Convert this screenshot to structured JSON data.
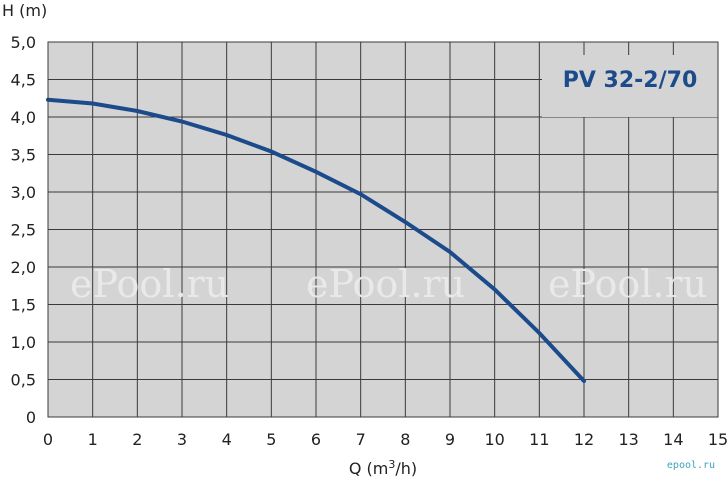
{
  "chart_data": {
    "type": "line",
    "title": "PV 32-2/70",
    "xlabel_prefix": "Q (m",
    "xlabel_sup": "3",
    "xlabel_suffix": "/h)",
    "ylabel": "H (m)",
    "xlim": [
      0,
      15
    ],
    "ylim": [
      0,
      5
    ],
    "x_ticks": [
      0,
      1,
      2,
      3,
      4,
      5,
      6,
      7,
      8,
      9,
      10,
      11,
      12,
      13,
      14,
      15
    ],
    "x_tick_labels": [
      "0",
      "1",
      "2",
      "3",
      "4",
      "5",
      "6",
      "7",
      "8",
      "9",
      "10",
      "11",
      "12",
      "13",
      "14",
      "15"
    ],
    "y_ticks": [
      0,
      0.5,
      1,
      1.5,
      2,
      2.5,
      3,
      3.5,
      4,
      4.5,
      5
    ],
    "y_tick_labels": [
      "0",
      "0,5",
      "1,0",
      "1,5",
      "2,0",
      "2,5",
      "3,0",
      "3,5",
      "4,0",
      "4,5",
      "5,0"
    ],
    "grid": true,
    "series": [
      {
        "x": [
          0,
          1,
          2,
          3,
          4,
          5,
          6,
          7,
          8,
          9,
          10,
          11,
          12
        ],
        "y": [
          4.23,
          4.18,
          4.08,
          3.94,
          3.76,
          3.54,
          3.27,
          2.97,
          2.6,
          2.2,
          1.7,
          1.12,
          0.48
        ]
      }
    ],
    "colors": {
      "line": "#1c4b8c",
      "plot_bg": "#d4d4d4",
      "grid": "#3a3a3a",
      "title": "#1c4b8c"
    }
  },
  "watermarks": [
    "ePool.ru",
    "ePool.ru",
    "ePool.ru"
  ],
  "corner_logo": "epool.ru"
}
